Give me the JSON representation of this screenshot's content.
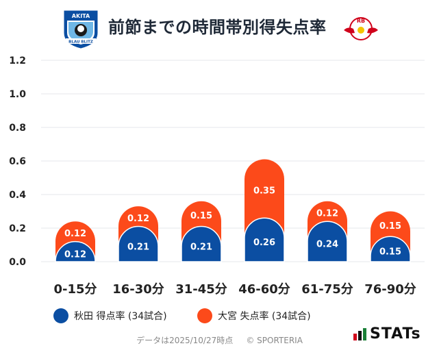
{
  "title": "前節までの時間帯別得失点率",
  "footer": {
    "left": "データは2025/10/27時点",
    "right": "© SPORTERIA"
  },
  "brand": {
    "name": "STATs"
  },
  "logos": {
    "left_text_top": "AKITA",
    "left_text_bottom": "BLAU BLITZ",
    "right_text": "RB"
  },
  "colors": {
    "scored": "#0b4ea2",
    "conceded": "#fc4a1a",
    "grid": "#e5e7eb",
    "axis_text": "#222222"
  },
  "chart_data": {
    "type": "bar",
    "stacked": true,
    "title": "前節までの時間帯別得失点率",
    "categories": [
      "0-15分",
      "16-30分",
      "31-45分",
      "46-60分",
      "61-75分",
      "76-90分"
    ],
    "series": [
      {
        "name": "秋田 得点率 (34試合)",
        "values": [
          0.12,
          0.21,
          0.21,
          0.26,
          0.24,
          0.15
        ]
      },
      {
        "name": "大宮 失点率 (34試合)",
        "values": [
          0.12,
          0.12,
          0.15,
          0.35,
          0.12,
          0.15
        ]
      }
    ],
    "ylim": [
      0,
      1.2
    ],
    "yticks": [
      "0.0",
      "0.2",
      "0.4",
      "0.6",
      "0.8",
      "1.0",
      "1.2"
    ],
    "ytick_values": [
      0,
      0.2,
      0.4,
      0.6,
      0.8,
      1.0,
      1.2
    ],
    "grid": true,
    "legend": "bottom-left"
  }
}
